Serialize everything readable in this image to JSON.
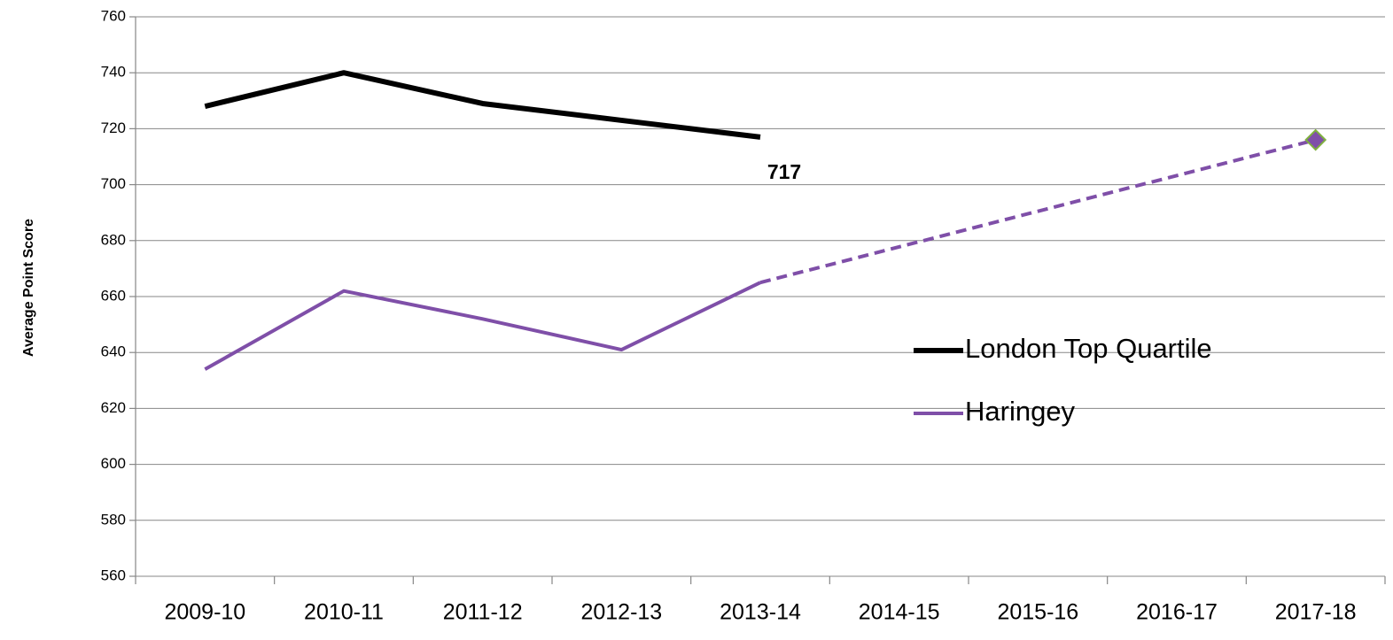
{
  "chart_data": {
    "type": "line",
    "y_label": "Average Point Score",
    "categories": [
      "2009-10",
      "2010-11",
      "2011-12",
      "2012-13",
      "2013-14",
      "2014-15",
      "2015-16",
      "2016-17",
      "2017-18"
    ],
    "series": [
      {
        "name": "London Top Quartile",
        "color": "#000000",
        "width": 6,
        "values": [
          728,
          740,
          729,
          723,
          717,
          null,
          null,
          null,
          null
        ],
        "value_labels": [
          null,
          null,
          null,
          null,
          "717",
          null,
          null,
          null,
          null
        ]
      },
      {
        "name": "Haringey",
        "color": "#7f4fa8",
        "width": 4,
        "values": [
          634,
          662,
          652,
          641,
          665,
          null,
          null,
          null,
          716
        ],
        "gap_style": "dashed",
        "end_marker": "diamond",
        "marker_edge": "#7fb03f"
      }
    ],
    "ylim": [
      560,
      760
    ],
    "yticks": [
      560,
      580,
      600,
      620,
      640,
      660,
      680,
      700,
      720,
      740,
      760
    ],
    "grid": true,
    "legend": "center-right"
  }
}
